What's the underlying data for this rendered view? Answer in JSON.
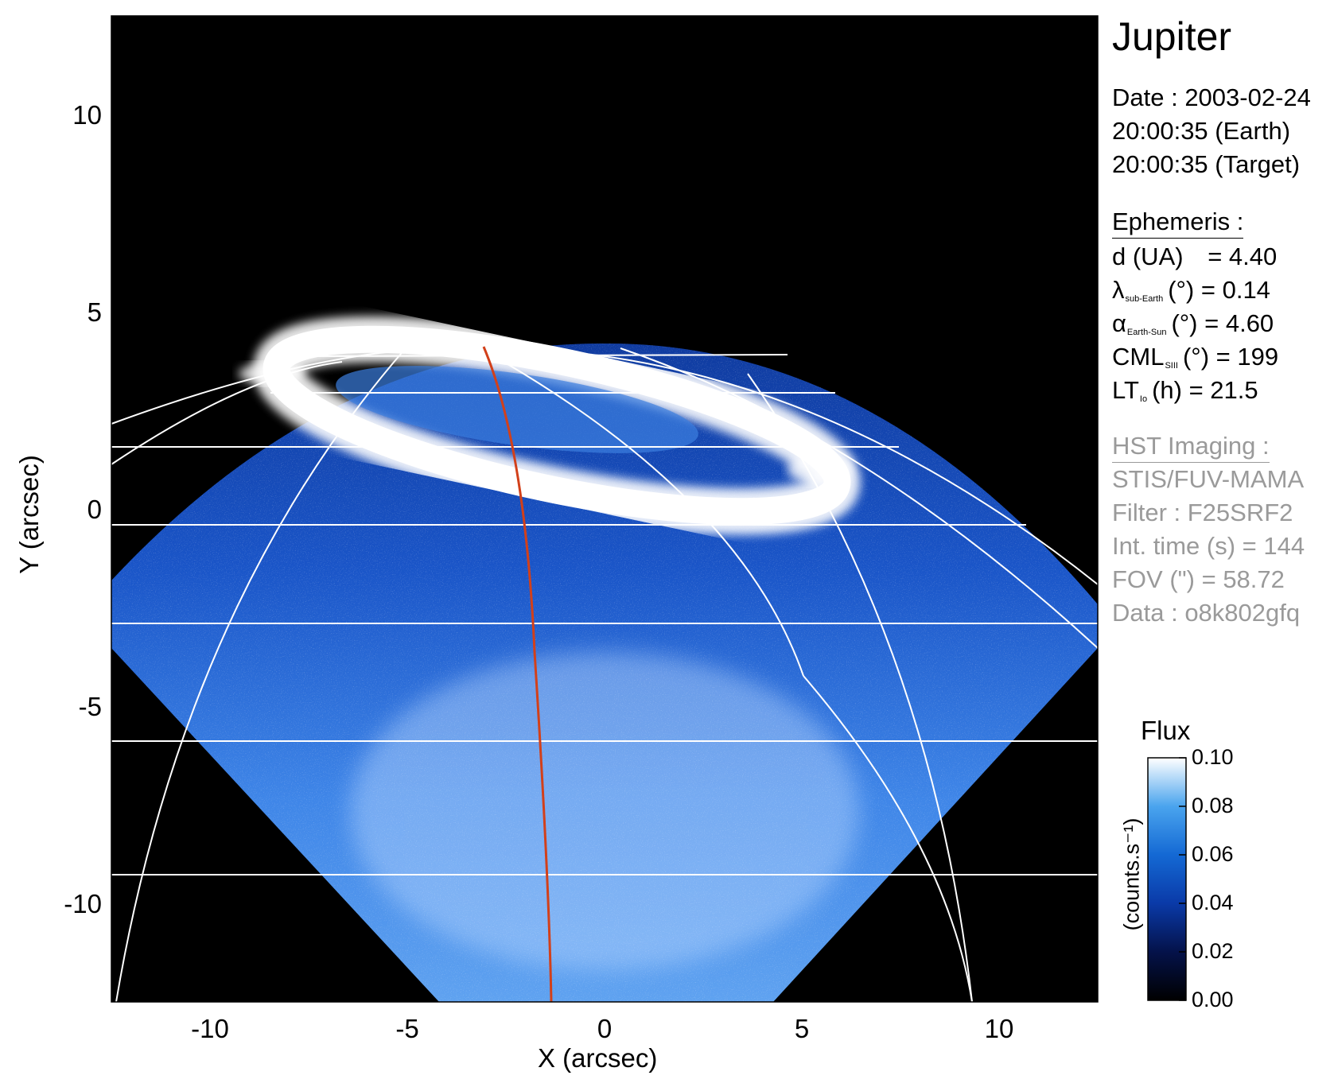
{
  "panel": {
    "target": "Jupiter",
    "date_line": "Date : 2003-02-24",
    "time_earth": "20:00:35 (Earth)",
    "time_target": "20:00:35 (Target)",
    "ephemeris_header": "Ephemeris :",
    "distance": {
      "label": "d (UA)",
      "value": "= 4.40"
    },
    "lambda": {
      "symbol": "λ",
      "subscript": "sub-Earth",
      "unit": "(°)",
      "value": "= 0.14"
    },
    "alpha": {
      "symbol": "α",
      "subscript": "Earth-Sun",
      "unit": "(°)",
      "value": "= 4.60"
    },
    "cml": {
      "symbol": "CML",
      "subscript": "SIII",
      "unit": "(°)",
      "value": "= 199"
    },
    "lt": {
      "symbol": "LT",
      "subscript": "Io",
      "unit": "(h)",
      "value": "= 21.5"
    },
    "hst_header": "HST Imaging :",
    "instrument": "STIS/FUV-MAMA",
    "filter": "Filter : F25SRF2",
    "int_time": "Int. time (s) = 144",
    "fov": "FOV (\") = 58.72",
    "dataset": "Data : o8k802gfq"
  },
  "axes": {
    "xlabel": "X (arcsec)",
    "ylabel": "Y (arcsec)",
    "xticks": [
      -10,
      -5,
      0,
      5,
      10
    ],
    "yticks": [
      10,
      5,
      0,
      -5,
      -10
    ],
    "range": [
      -12.5,
      12.5
    ]
  },
  "colorbar": {
    "title": "Flux",
    "unit_label": "(counts.s⁻¹)",
    "ticks": [
      "0.10",
      "0.08",
      "0.06",
      "0.04",
      "0.02",
      "0.00"
    ]
  },
  "colors": {
    "background": "#000000",
    "disk_blue": "#1e5dd4",
    "aurora": "#ffffff",
    "grid": "#ffffff",
    "meridian": "#d2401a"
  }
}
